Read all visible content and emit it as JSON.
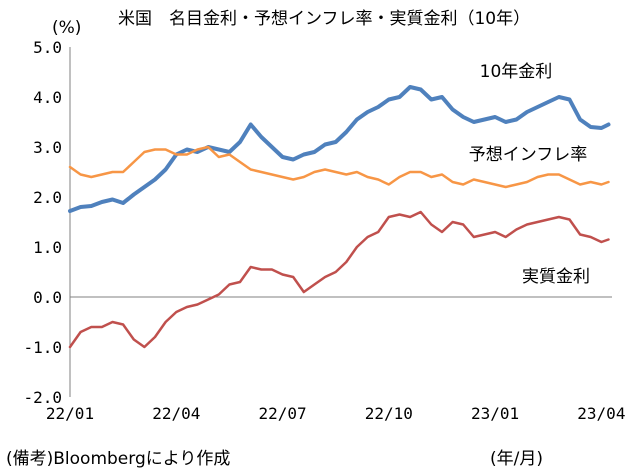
{
  "header": {
    "title": "米国　名目金利・予想インフレ率・実質金利（10年）",
    "y_unit": "(%)",
    "source": "(備考)Bloombergにより作成",
    "x_unit": "(年/月)"
  },
  "chart_data": {
    "type": "line",
    "title": "米国　名目金利・予想インフレ率・実質金利（10年）",
    "ylabel": "(%)",
    "xlabel": "(年/月)",
    "ylim": [
      -2.0,
      5.0
    ],
    "xlim": [
      0,
      15.3
    ],
    "yticks": [
      "5.0",
      "4.0",
      "3.0",
      "2.0",
      "1.0",
      "0.0",
      "-1.0",
      "-2.0"
    ],
    "ytick_values": [
      5,
      4,
      3,
      2,
      1,
      0,
      -1,
      -2
    ],
    "xticks": [
      "22/01",
      "22/04",
      "22/07",
      "22/10",
      "23/01",
      "23/04"
    ],
    "xtick_values": [
      0,
      3,
      6,
      9,
      12,
      15
    ],
    "grid": false,
    "legend": "inline labels at line ends",
    "series": [
      {
        "name": "10年金利",
        "color": "#4f81bd",
        "x": [
          0,
          0.3,
          0.6,
          0.9,
          1.2,
          1.5,
          1.8,
          2.1,
          2.4,
          2.7,
          3.0,
          3.3,
          3.6,
          3.9,
          4.2,
          4.5,
          4.8,
          5.1,
          5.4,
          5.7,
          6.0,
          6.3,
          6.6,
          6.9,
          7.2,
          7.5,
          7.8,
          8.1,
          8.4,
          8.7,
          9.0,
          9.3,
          9.6,
          9.9,
          10.2,
          10.5,
          10.8,
          11.1,
          11.4,
          11.7,
          12.0,
          12.3,
          12.6,
          12.9,
          13.2,
          13.5,
          13.8,
          14.1,
          14.4,
          14.7,
          15.0,
          15.2
        ],
        "y": [
          1.72,
          1.8,
          1.82,
          1.9,
          1.95,
          1.88,
          2.05,
          2.2,
          2.35,
          2.55,
          2.85,
          2.95,
          2.9,
          3.0,
          2.95,
          2.9,
          3.1,
          3.45,
          3.2,
          3.0,
          2.8,
          2.75,
          2.85,
          2.9,
          3.05,
          3.1,
          3.3,
          3.55,
          3.7,
          3.8,
          3.95,
          4.0,
          4.2,
          4.15,
          3.95,
          4.0,
          3.75,
          3.6,
          3.5,
          3.55,
          3.6,
          3.5,
          3.55,
          3.7,
          3.8,
          3.9,
          4.0,
          3.95,
          3.55,
          3.4,
          3.38,
          3.45
        ]
      },
      {
        "name": "予想インフレ率",
        "color": "#f79646",
        "x": [
          0,
          0.3,
          0.6,
          0.9,
          1.2,
          1.5,
          1.8,
          2.1,
          2.4,
          2.7,
          3.0,
          3.3,
          3.6,
          3.9,
          4.2,
          4.5,
          4.8,
          5.1,
          5.4,
          5.7,
          6.0,
          6.3,
          6.6,
          6.9,
          7.2,
          7.5,
          7.8,
          8.1,
          8.4,
          8.7,
          9.0,
          9.3,
          9.6,
          9.9,
          10.2,
          10.5,
          10.8,
          11.1,
          11.4,
          11.7,
          12.0,
          12.3,
          12.6,
          12.9,
          13.2,
          13.5,
          13.8,
          14.1,
          14.4,
          14.7,
          15.0,
          15.2
        ],
        "y": [
          2.6,
          2.45,
          2.4,
          2.45,
          2.5,
          2.5,
          2.7,
          2.9,
          2.95,
          2.95,
          2.85,
          2.85,
          2.95,
          3.0,
          2.8,
          2.85,
          2.7,
          2.55,
          2.5,
          2.45,
          2.4,
          2.35,
          2.4,
          2.5,
          2.55,
          2.5,
          2.45,
          2.5,
          2.4,
          2.35,
          2.25,
          2.4,
          2.5,
          2.5,
          2.4,
          2.45,
          2.3,
          2.25,
          2.35,
          2.3,
          2.25,
          2.2,
          2.25,
          2.3,
          2.4,
          2.45,
          2.45,
          2.35,
          2.25,
          2.3,
          2.25,
          2.3
        ]
      },
      {
        "name": "実質金利",
        "color": "#c0504d",
        "x": [
          0,
          0.3,
          0.6,
          0.9,
          1.2,
          1.5,
          1.8,
          2.1,
          2.4,
          2.7,
          3.0,
          3.3,
          3.6,
          3.9,
          4.2,
          4.5,
          4.8,
          5.1,
          5.4,
          5.7,
          6.0,
          6.3,
          6.6,
          6.9,
          7.2,
          7.5,
          7.8,
          8.1,
          8.4,
          8.7,
          9.0,
          9.3,
          9.6,
          9.9,
          10.2,
          10.5,
          10.8,
          11.1,
          11.4,
          11.7,
          12.0,
          12.3,
          12.6,
          12.9,
          13.2,
          13.5,
          13.8,
          14.1,
          14.4,
          14.7,
          15.0,
          15.2
        ],
        "y": [
          -1.0,
          -0.7,
          -0.6,
          -0.6,
          -0.5,
          -0.55,
          -0.85,
          -1.0,
          -0.8,
          -0.5,
          -0.3,
          -0.2,
          -0.15,
          -0.05,
          0.05,
          0.25,
          0.3,
          0.6,
          0.55,
          0.55,
          0.45,
          0.4,
          0.1,
          0.25,
          0.4,
          0.5,
          0.7,
          1.0,
          1.2,
          1.3,
          1.6,
          1.65,
          1.6,
          1.7,
          1.45,
          1.3,
          1.5,
          1.45,
          1.2,
          1.25,
          1.3,
          1.2,
          1.35,
          1.45,
          1.5,
          1.55,
          1.6,
          1.55,
          1.25,
          1.2,
          1.1,
          1.15
        ]
      }
    ]
  }
}
